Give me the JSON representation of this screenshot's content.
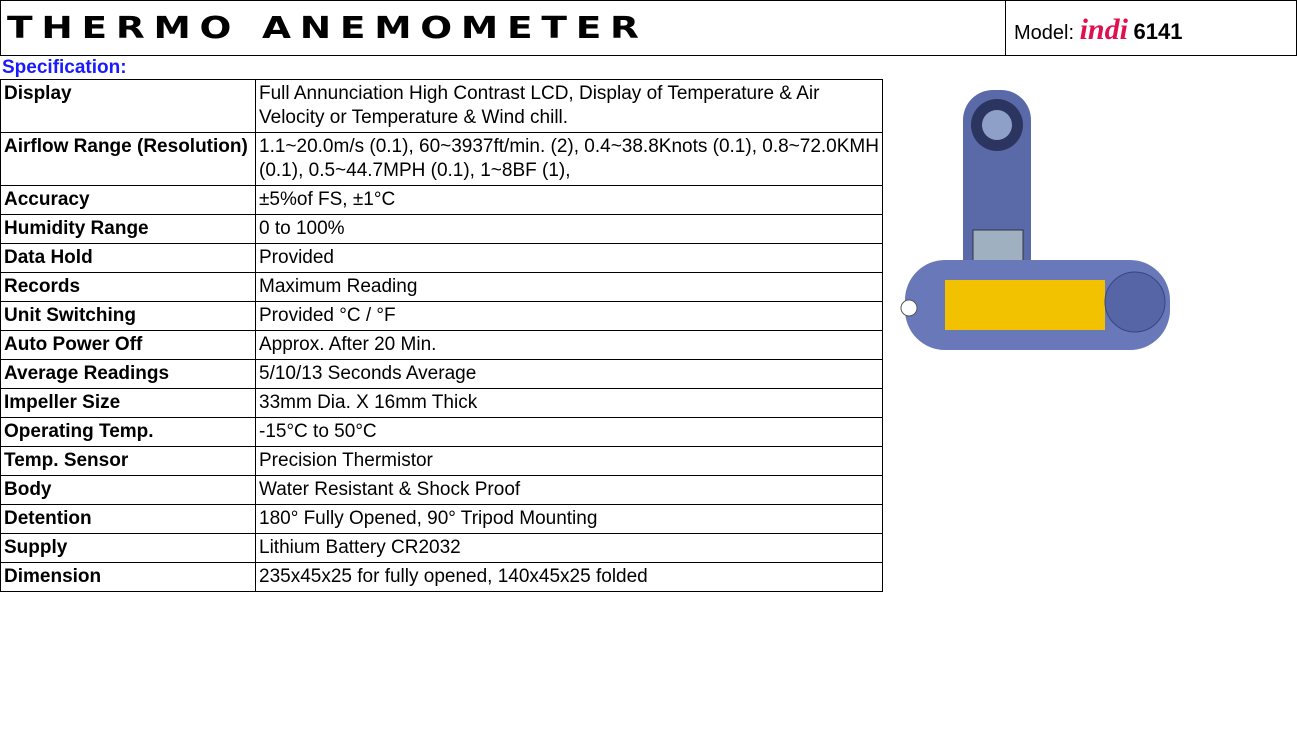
{
  "header": {
    "title": "THERMO ANEMOMETER",
    "model_label": "Model:",
    "model_brand": "indi",
    "model_number": "6141"
  },
  "section": "Specification:",
  "table": {
    "rows": [
      [
        "Display",
        "Full Annunciation High Contrast LCD, Display of Temperature & Air Velocity or Temperature & Wind chill."
      ],
      [
        "Airflow Range (Resolution)",
        "1.1~20.0m/s (0.1), 60~3937ft/min. (2), 0.4~38.8Knots (0.1), 0.8~72.0KMH (0.1), 0.5~44.7MPH (0.1), 1~8BF (1),"
      ],
      [
        "Accuracy",
        "±5%of FS, ±1°C"
      ],
      [
        "Humidity Range",
        "0 to 100%"
      ],
      [
        "Data Hold",
        "Provided"
      ],
      [
        "Records",
        "Maximum Reading"
      ],
      [
        "Unit Switching",
        "Provided °C / °F"
      ],
      [
        "Auto Power Off",
        "Approx. After 20 Min."
      ],
      [
        "Average Readings",
        "5/10/13 Seconds Average"
      ],
      [
        "Impeller Size",
        "33mm Dia. X 16mm Thick"
      ],
      [
        "Operating Temp.",
        "-15°C to 50°C"
      ],
      [
        "Temp. Sensor",
        "Precision Thermistor"
      ],
      [
        "Body",
        "Water Resistant & Shock Proof"
      ],
      [
        "Detention",
        "180° Fully Opened, 90° Tripod Mounting"
      ],
      [
        "Supply",
        "Lithium Battery CR2032"
      ],
      [
        "Dimension",
        "235x45x25 for fully opened, 140x45x25 folded"
      ]
    ]
  }
}
